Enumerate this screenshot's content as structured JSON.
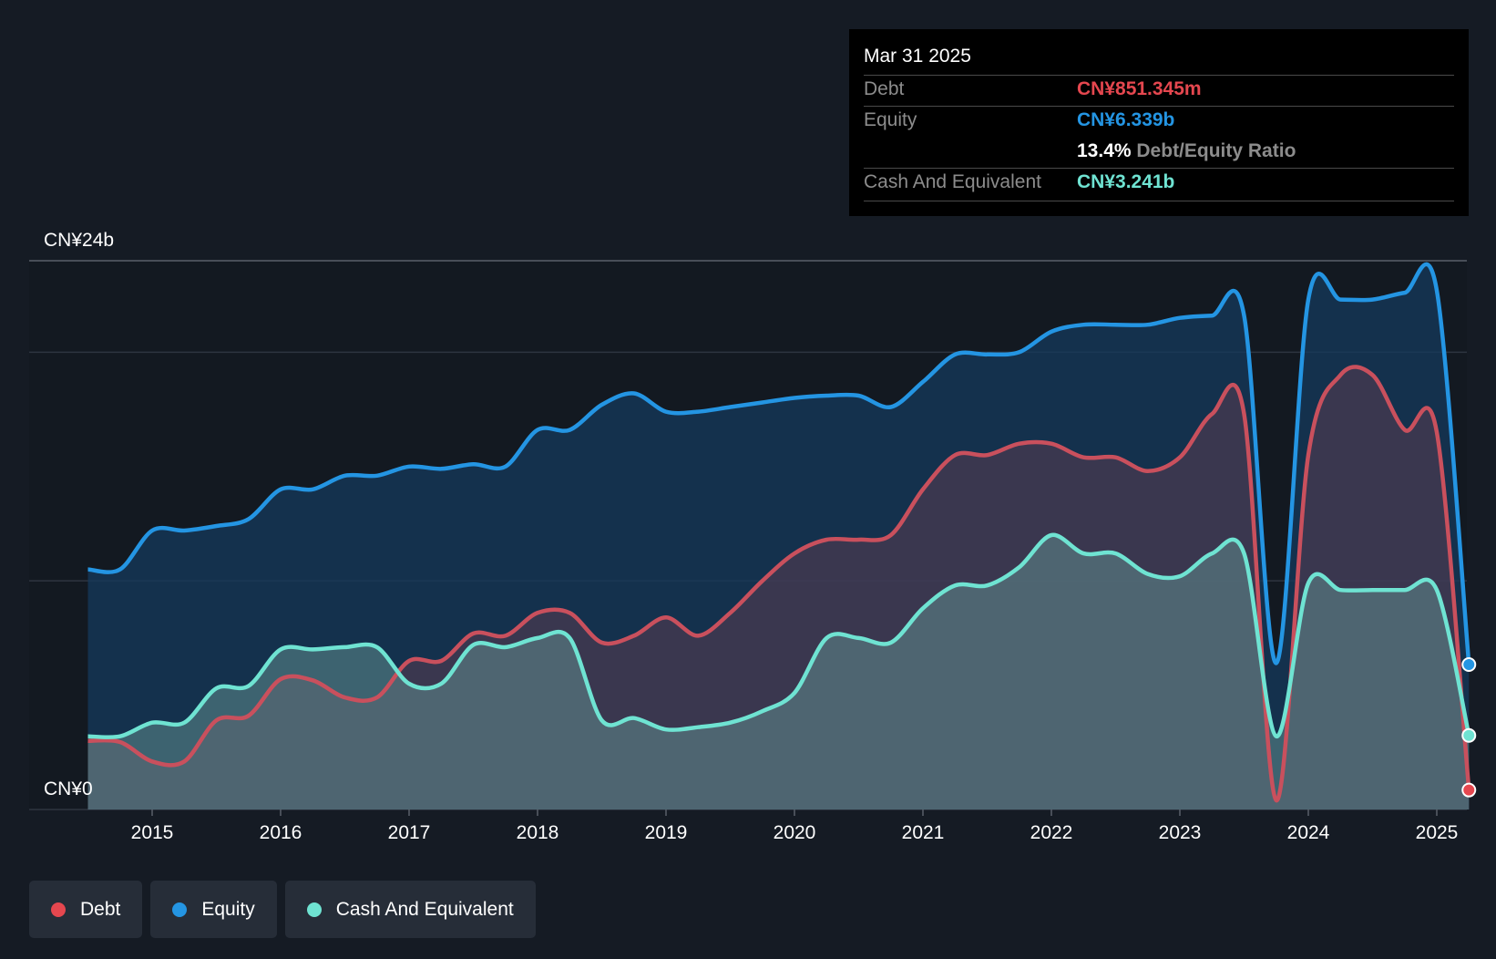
{
  "tooltip": {
    "date": "Mar 31 2025",
    "debt_label": "Debt",
    "debt_value": "CN¥851.345m",
    "equity_label": "Equity",
    "equity_value": "CN¥6.339b",
    "ratio_value": "13.4%",
    "ratio_label": "Debt/Equity Ratio",
    "cash_label": "Cash And Equivalent",
    "cash_value": "CN¥3.241b"
  },
  "legend": [
    {
      "label": "Debt",
      "color": "#e5474f"
    },
    {
      "label": "Equity",
      "color": "#2495e3"
    },
    {
      "label": "Cash And Equivalent",
      "color": "#6fe3d2"
    }
  ],
  "chart_data": {
    "type": "area",
    "ylim": [
      0,
      24
    ],
    "y_unit": "CN¥ billions",
    "y_tick_labels": [
      {
        "value": 24,
        "label": "CN¥24b"
      },
      {
        "value": 0,
        "label": "CN¥0"
      }
    ],
    "gridlines": [
      24,
      20,
      10,
      0
    ],
    "x_ticks": [
      "2015",
      "2016",
      "2017",
      "2018",
      "2019",
      "2020",
      "2021",
      "2022",
      "2023",
      "2024",
      "2025"
    ],
    "series": [
      {
        "name": "Debt",
        "color": "#e5474f",
        "line_color": "#c9505d",
        "points": [
          [
            2014.5,
            3.0
          ],
          [
            2014.75,
            2.95
          ],
          [
            2015.0,
            2.1
          ],
          [
            2015.25,
            2.1
          ],
          [
            2015.5,
            3.9
          ],
          [
            2015.75,
            4.1
          ],
          [
            2016.0,
            5.7
          ],
          [
            2016.25,
            5.65
          ],
          [
            2016.5,
            4.9
          ],
          [
            2016.75,
            4.9
          ],
          [
            2017.0,
            6.5
          ],
          [
            2017.25,
            6.5
          ],
          [
            2017.5,
            7.7
          ],
          [
            2017.75,
            7.6
          ],
          [
            2018.0,
            8.6
          ],
          [
            2018.25,
            8.6
          ],
          [
            2018.5,
            7.3
          ],
          [
            2018.75,
            7.6
          ],
          [
            2019.0,
            8.4
          ],
          [
            2019.25,
            7.6
          ],
          [
            2019.5,
            8.6
          ],
          [
            2019.75,
            10.0
          ],
          [
            2020.0,
            11.2
          ],
          [
            2020.25,
            11.8
          ],
          [
            2020.5,
            11.8
          ],
          [
            2020.75,
            12.0
          ],
          [
            2021.0,
            14.0
          ],
          [
            2021.25,
            15.5
          ],
          [
            2021.5,
            15.5
          ],
          [
            2021.75,
            16.0
          ],
          [
            2022.0,
            16.0
          ],
          [
            2022.25,
            15.4
          ],
          [
            2022.5,
            15.4
          ],
          [
            2022.75,
            14.8
          ],
          [
            2023.0,
            15.4
          ],
          [
            2023.25,
            17.3
          ],
          [
            2023.5,
            17.3
          ],
          [
            2023.75,
            0.4
          ],
          [
            2024.0,
            15.5
          ],
          [
            2024.25,
            19.0
          ],
          [
            2024.5,
            19.0
          ],
          [
            2024.75,
            16.6
          ],
          [
            2025.0,
            16.5
          ],
          [
            2025.25,
            0.85
          ]
        ]
      },
      {
        "name": "Equity",
        "color": "#2495e3",
        "line_color": "#2495e3",
        "points": [
          [
            2014.5,
            10.5
          ],
          [
            2014.75,
            10.5
          ],
          [
            2015.0,
            12.2
          ],
          [
            2015.25,
            12.2
          ],
          [
            2015.5,
            12.4
          ],
          [
            2015.75,
            12.7
          ],
          [
            2016.0,
            14.0
          ],
          [
            2016.25,
            14.0
          ],
          [
            2016.5,
            14.6
          ],
          [
            2016.75,
            14.6
          ],
          [
            2017.0,
            15.0
          ],
          [
            2017.25,
            14.9
          ],
          [
            2017.5,
            15.1
          ],
          [
            2017.75,
            15.0
          ],
          [
            2018.0,
            16.6
          ],
          [
            2018.25,
            16.6
          ],
          [
            2018.5,
            17.7
          ],
          [
            2018.75,
            18.2
          ],
          [
            2019.0,
            17.4
          ],
          [
            2019.25,
            17.4
          ],
          [
            2019.5,
            17.6
          ],
          [
            2019.75,
            17.8
          ],
          [
            2020.0,
            18.0
          ],
          [
            2020.25,
            18.1
          ],
          [
            2020.5,
            18.1
          ],
          [
            2020.75,
            17.6
          ],
          [
            2021.0,
            18.7
          ],
          [
            2021.25,
            19.9
          ],
          [
            2021.5,
            19.9
          ],
          [
            2021.75,
            20.0
          ],
          [
            2022.0,
            20.9
          ],
          [
            2022.25,
            21.2
          ],
          [
            2022.5,
            21.2
          ],
          [
            2022.75,
            21.2
          ],
          [
            2023.0,
            21.5
          ],
          [
            2023.25,
            21.6
          ],
          [
            2023.5,
            21.6
          ],
          [
            2023.75,
            6.4
          ],
          [
            2024.0,
            22.3
          ],
          [
            2024.25,
            22.3
          ],
          [
            2024.5,
            22.3
          ],
          [
            2024.75,
            22.6
          ],
          [
            2025.0,
            22.7
          ],
          [
            2025.25,
            6.34
          ]
        ]
      },
      {
        "name": "Cash And Equivalent",
        "color": "#6fe3d2",
        "line_color": "#6fe3d2",
        "points": [
          [
            2014.5,
            3.2
          ],
          [
            2014.75,
            3.2
          ],
          [
            2015.0,
            3.8
          ],
          [
            2015.25,
            3.8
          ],
          [
            2015.5,
            5.3
          ],
          [
            2015.75,
            5.4
          ],
          [
            2016.0,
            7.0
          ],
          [
            2016.25,
            7.0
          ],
          [
            2016.5,
            7.1
          ],
          [
            2016.75,
            7.1
          ],
          [
            2017.0,
            5.5
          ],
          [
            2017.25,
            5.5
          ],
          [
            2017.5,
            7.2
          ],
          [
            2017.75,
            7.1
          ],
          [
            2018.0,
            7.5
          ],
          [
            2018.25,
            7.5
          ],
          [
            2018.5,
            3.9
          ],
          [
            2018.75,
            4.0
          ],
          [
            2019.0,
            3.5
          ],
          [
            2019.25,
            3.6
          ],
          [
            2019.5,
            3.8
          ],
          [
            2019.75,
            4.3
          ],
          [
            2020.0,
            5.1
          ],
          [
            2020.25,
            7.5
          ],
          [
            2020.5,
            7.5
          ],
          [
            2020.75,
            7.3
          ],
          [
            2021.0,
            8.8
          ],
          [
            2021.25,
            9.8
          ],
          [
            2021.5,
            9.8
          ],
          [
            2021.75,
            10.6
          ],
          [
            2022.0,
            12.0
          ],
          [
            2022.25,
            11.2
          ],
          [
            2022.5,
            11.2
          ],
          [
            2022.75,
            10.3
          ],
          [
            2023.0,
            10.2
          ],
          [
            2023.25,
            11.2
          ],
          [
            2023.5,
            11.2
          ],
          [
            2023.75,
            3.2
          ],
          [
            2024.0,
            9.9
          ],
          [
            2024.25,
            9.6
          ],
          [
            2024.5,
            9.6
          ],
          [
            2024.75,
            9.6
          ],
          [
            2025.0,
            9.6
          ],
          [
            2025.25,
            3.24
          ]
        ]
      }
    ]
  }
}
